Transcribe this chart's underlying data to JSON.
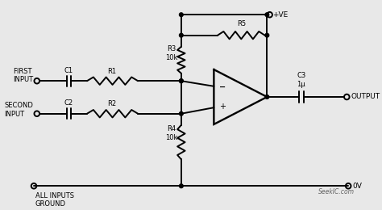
{
  "bg_color": "#e8e8e8",
  "line_color": "black",
  "lw": 1.4,
  "watermark": "SeekIC.com",
  "labels": {
    "first_input": "FIRST\nINPUT",
    "second_input": "SECOND\nINPUT",
    "all_inputs_ground": "ALL INPUTS\nGROUND",
    "c1": "C1",
    "c2": "C2",
    "r1": "R1",
    "r2": "R2",
    "r3": "R3\n10k",
    "r4": "R4\n10k",
    "r5": "R5",
    "c3": "C3\n1μ",
    "output": "OUTPUT",
    "plus_ve": "+VE",
    "zero_v": "0V",
    "minus": "−",
    "plus": "+"
  }
}
